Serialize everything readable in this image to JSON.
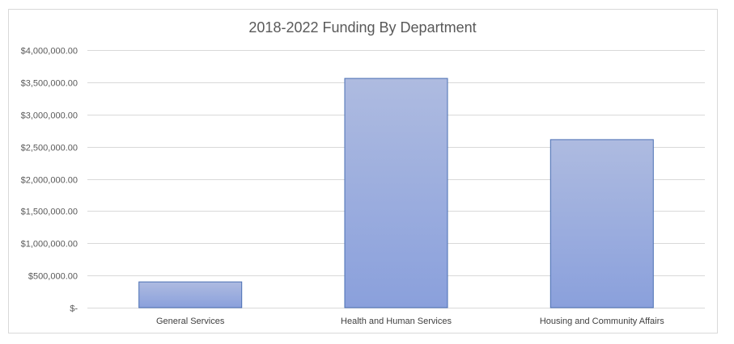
{
  "chart_data": {
    "type": "bar",
    "title": "2018-2022 Funding By Department",
    "categories": [
      "General Services",
      "Health and Human Services",
      "Housing and Community Affairs"
    ],
    "values": [
      400000,
      3560000,
      2610000
    ],
    "ylim": [
      0,
      4000000
    ],
    "yticks": [
      0,
      500000,
      1000000,
      1500000,
      2000000,
      2500000,
      3000000,
      3500000,
      4000000
    ],
    "ytick_labels": [
      "$-",
      "$500,000.00",
      "$1,000,000.00",
      "$1,500,000.00",
      "$2,000,000.00",
      "$2,500,000.00",
      "$3,000,000.00",
      "$3,500,000.00",
      "$4,000,000.00"
    ],
    "xlabel": "",
    "ylabel": "",
    "grid": true,
    "legend": "none",
    "bar_color_top": "#aebbe0",
    "bar_color_bottom": "#8aa0dc",
    "bar_border_color": "#4a6fb3"
  }
}
